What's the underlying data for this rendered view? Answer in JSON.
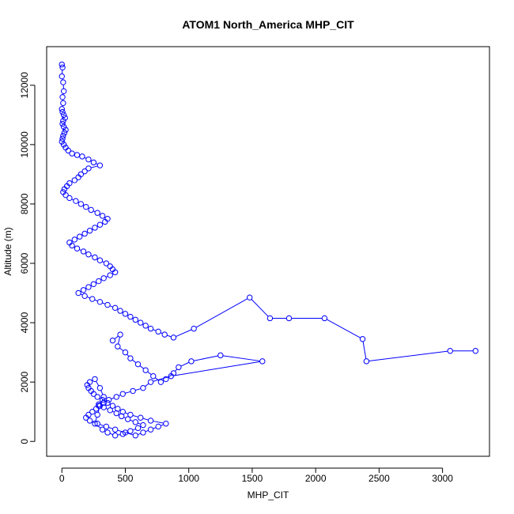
{
  "chart_data": {
    "type": "scatter",
    "connected": true,
    "title": "ATOM1 North_America MHP_CIT",
    "xlabel": "MHP_CIT",
    "ylabel": "Altitude (m)",
    "xlim": [
      -120,
      3370
    ],
    "ylim": [
      -500,
      13300
    ],
    "xticks": [
      0,
      500,
      1000,
      1500,
      2000,
      2500,
      3000
    ],
    "yticks": [
      0,
      2000,
      4000,
      6000,
      8000,
      10000,
      12000
    ],
    "grid": false,
    "legend": "none",
    "color": "#0000ff",
    "marker": "open-circle",
    "series": [
      {
        "x": [
          0,
          5,
          0,
          10,
          15,
          5,
          10,
          0,
          5,
          15,
          25,
          10,
          5,
          15,
          30,
          20,
          10,
          5,
          0,
          15,
          30,
          50,
          80,
          120,
          160,
          210,
          250,
          300,
          210,
          180,
          150,
          130,
          100,
          60,
          40,
          20,
          10,
          30,
          60,
          110,
          150,
          190,
          230,
          280,
          320,
          360,
          340,
          300,
          260,
          220,
          180,
          140,
          100,
          60,
          80,
          120,
          170,
          210,
          260,
          300,
          350,
          380,
          400,
          420,
          380,
          330,
          290,
          250,
          210,
          170,
          130,
          180,
          240,
          300,
          360,
          420,
          460,
          500,
          540,
          580,
          620,
          660,
          700,
          760,
          810,
          880,
          1040,
          1480,
          1640,
          1790,
          2070,
          2370,
          2400,
          3060,
          3260
        ],
        "y": [
          12700,
          12600,
          12300,
          12100,
          11800,
          11600,
          11400,
          11200,
          11100,
          11000,
          10900,
          10800,
          10700,
          10600,
          10500,
          10400,
          10300,
          10200,
          10100,
          10000,
          9900,
          9800,
          9700,
          9650,
          9600,
          9500,
          9400,
          9300,
          9200,
          9100,
          9000,
          8900,
          8800,
          8700,
          8600,
          8500,
          8400,
          8300,
          8200,
          8100,
          8000,
          7900,
          7800,
          7700,
          7600,
          7500,
          7400,
          7300,
          7200,
          7100,
          7000,
          6900,
          6800,
          6700,
          6600,
          6500,
          6400,
          6300,
          6200,
          6100,
          6000,
          5900,
          5800,
          5700,
          5600,
          5500,
          5400,
          5300,
          5200,
          5100,
          5000,
          4900,
          4800,
          4700,
          4600,
          4500,
          4400,
          4300,
          4200,
          4100,
          4000,
          3900,
          3800,
          3700,
          3600,
          3500,
          3800,
          4850,
          4150,
          4150,
          4150,
          3450,
          2700,
          3050,
          3050
        ]
      },
      {
        "x": [
          400,
          460,
          440,
          500,
          540,
          600,
          660,
          720,
          780,
          820,
          880,
          920,
          1020,
          1250,
          1580,
          860,
          700,
          640,
          560,
          480,
          430,
          370,
          330,
          290,
          270,
          240,
          210,
          190,
          220,
          280,
          350,
          420,
          500,
          580,
          640,
          700,
          760,
          820,
          700,
          620,
          540,
          480,
          440,
          400,
          360,
          320,
          280,
          250,
          230,
          210,
          200,
          220,
          260,
          300,
          330,
          300,
          280,
          260,
          320,
          360,
          420,
          480,
          540,
          600,
          640,
          580,
          520,
          470,
          430,
          380,
          330,
          290
        ],
        "y": [
          3400,
          3600,
          3200,
          3000,
          2800,
          2600,
          2400,
          2200,
          2000,
          2100,
          2300,
          2500,
          2700,
          2900,
          2700,
          2200,
          2000,
          1800,
          1700,
          1600,
          1500,
          1400,
          1300,
          1200,
          1100,
          1000,
          900,
          800,
          700,
          600,
          500,
          400,
          300,
          200,
          300,
          400,
          500,
          600,
          700,
          800,
          900,
          1000,
          1100,
          1200,
          1300,
          1400,
          1500,
          1600,
          1700,
          1800,
          1900,
          2000,
          2100,
          1800,
          1500,
          1200,
          900,
          600,
          400,
          300,
          200,
          250,
          350,
          450,
          550,
          650,
          750,
          850,
          950,
          1050,
          1150,
          1250
        ]
      }
    ]
  }
}
